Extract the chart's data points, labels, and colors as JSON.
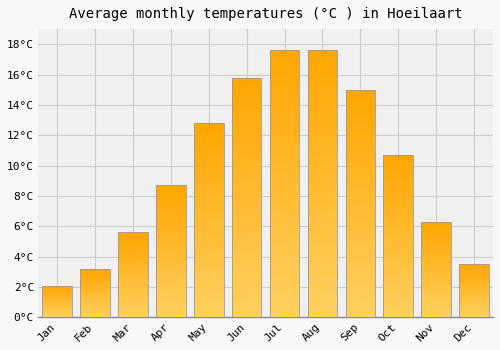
{
  "title": "Average monthly temperatures (°C ) in Hoeilaart",
  "months": [
    "Jan",
    "Feb",
    "Mar",
    "Apr",
    "May",
    "Jun",
    "Jul",
    "Aug",
    "Sep",
    "Oct",
    "Nov",
    "Dec"
  ],
  "temperatures": [
    2.1,
    3.2,
    5.6,
    8.7,
    12.8,
    15.8,
    17.6,
    17.6,
    15.0,
    10.7,
    6.3,
    3.5
  ],
  "bar_color_bottom": "#FFD060",
  "bar_color_top": "#FFA500",
  "bar_edge_color": "#999999",
  "yticks": [
    0,
    2,
    4,
    6,
    8,
    10,
    12,
    14,
    16,
    18
  ],
  "ylim": [
    0,
    19.0
  ],
  "background_color": "#f8f8f8",
  "plot_bg_color": "#f0f0f0",
  "grid_color": "#cccccc",
  "title_fontsize": 10,
  "tick_fontsize": 8,
  "font_family": "monospace",
  "bar_width": 0.78,
  "n_gradient_segments": 40
}
